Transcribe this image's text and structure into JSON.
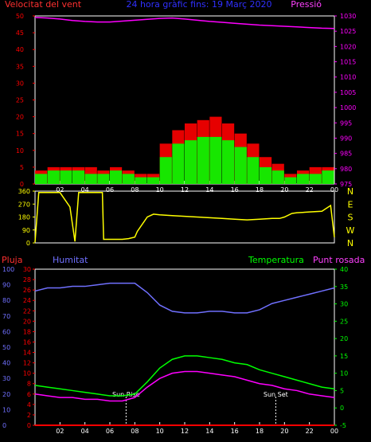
{
  "header": {
    "left_title": "Velocitat del vent",
    "center_title": "24 hora gràfic fins: 19 Març 2020",
    "right_title": "Pressió"
  },
  "colors": {
    "background": "#000000",
    "frame": "#ffffff",
    "wind_avg": "#ff0000",
    "wind_gust": "#00ff00",
    "wind_ref": "#ffffff",
    "pressure": "#ff00ff",
    "direction": "#ffff00",
    "humidity": "#7070ff",
    "temperature": "#00ff00",
    "dewpoint": "#ff00ff",
    "rain": "#ff0000",
    "grid": "#666666"
  },
  "time_ticks": [
    "02",
    "04",
    "06",
    "08",
    "10",
    "12",
    "14",
    "16",
    "18",
    "20",
    "22",
    "00"
  ],
  "chart_data": [
    {
      "type": "line",
      "id": "wind_pressure",
      "title": "24 hora gràfic fins: 19 Març 2020",
      "ylabel_left": "Velocitat del vent",
      "ylabel_right": "Pressió",
      "ylim_left": [
        0,
        50
      ],
      "ylim_right": [
        975,
        1030
      ],
      "yticks_left": [
        "0",
        "5",
        "10",
        "15",
        "20",
        "25",
        "30",
        "35",
        "40",
        "45",
        "50"
      ],
      "yticks_right": [
        "975",
        "980",
        "985",
        "990",
        "995",
        "1000",
        "1005",
        "1010",
        "1015",
        "1020",
        "1025",
        "1030"
      ],
      "x": [
        0,
        1,
        2,
        3,
        4,
        5,
        6,
        7,
        8,
        9,
        10,
        11,
        12,
        13,
        14,
        15,
        16,
        17,
        18,
        19,
        20,
        21,
        22,
        23,
        24
      ],
      "series": [
        {
          "name": "Pressió",
          "values": [
            1029.5,
            1029.3,
            1029.0,
            1028.5,
            1028.2,
            1028.0,
            1028.0,
            1028.3,
            1028.6,
            1028.9,
            1029.2,
            1029.3,
            1029.0,
            1028.6,
            1028.2,
            1027.9,
            1027.6,
            1027.3,
            1027.0,
            1026.8,
            1026.6,
            1026.4,
            1026.2,
            1026.0,
            1025.9
          ]
        },
        {
          "name": "wind_gust",
          "values": [
            4,
            5,
            5,
            5,
            5,
            4,
            5,
            4,
            3,
            3,
            12,
            16,
            18,
            19,
            20,
            18,
            15,
            12,
            8,
            6,
            3,
            4,
            5,
            5,
            7
          ]
        },
        {
          "name": "wind_avg",
          "values": [
            3,
            4,
            4,
            4,
            3,
            3,
            4,
            3,
            2,
            2,
            8,
            12,
            13,
            14,
            14,
            13,
            11,
            8,
            5,
            4,
            2,
            3,
            3,
            4,
            4
          ]
        }
      ]
    },
    {
      "type": "line",
      "id": "wind_direction",
      "ylim": [
        0,
        360
      ],
      "yticks": [
        "0",
        "90",
        "180",
        "270",
        "360"
      ],
      "yticks_right": [
        "N",
        "W",
        "S",
        "E",
        "N"
      ],
      "x": [
        0,
        0.3,
        1.0,
        2.0,
        2.8,
        3.2,
        3.5,
        4.0,
        4.6,
        5.4,
        5.5,
        6.5,
        7.0,
        7.5,
        8.0,
        8.2,
        9.0,
        9.5,
        10.0,
        11.0,
        12.0,
        13.0,
        14.0,
        15.0,
        16.0,
        17.0,
        18.0,
        19.0,
        19.6,
        20.0,
        20.6,
        21.0,
        22.0,
        23.0,
        23.7,
        24.0
      ],
      "series": [
        {
          "name": "direction",
          "values": [
            5,
            350,
            350,
            350,
            250,
            10,
            350,
            350,
            350,
            350,
            25,
            25,
            25,
            30,
            40,
            80,
            180,
            200,
            195,
            190,
            185,
            180,
            175,
            170,
            165,
            160,
            165,
            170,
            170,
            180,
            205,
            210,
            215,
            220,
            260,
            40
          ]
        }
      ]
    },
    {
      "type": "line",
      "id": "rain_humidity_temp",
      "labels": {
        "rain": "Pluja",
        "humidity": "Humitat",
        "temperature": "Temperatura",
        "dewpoint": "Punt rosada"
      },
      "ylim_rain": [
        0,
        30
      ],
      "ylim_humidity": [
        0,
        100
      ],
      "ylim_temperature": [
        -5,
        40
      ],
      "yticks_humidity": [
        "0",
        "10",
        "20",
        "30",
        "40",
        "50",
        "60",
        "70",
        "80",
        "90",
        "100"
      ],
      "yticks_rain": [
        "0",
        "2",
        "4",
        "6",
        "8",
        "10",
        "12",
        "14",
        "16",
        "18",
        "20",
        "22",
        "24",
        "26",
        "28",
        "30"
      ],
      "yticks_temperature": [
        "-5",
        "0",
        "5",
        "10",
        "15",
        "20",
        "25",
        "30",
        "35",
        "40"
      ],
      "annotations": [
        {
          "text": "Sun Rise",
          "x": 7.3
        },
        {
          "text": "Sun Set",
          "x": 19.3
        }
      ],
      "x": [
        0,
        1,
        2,
        3,
        4,
        5,
        6,
        7,
        8,
        9,
        10,
        11,
        12,
        13,
        14,
        15,
        16,
        17,
        18,
        19,
        20,
        21,
        22,
        23,
        24
      ],
      "series": [
        {
          "name": "Humitat",
          "values": [
            86,
            88,
            88,
            89,
            89,
            90,
            91,
            91,
            91,
            85,
            77,
            73,
            72,
            72,
            73,
            73,
            72,
            72,
            74,
            78,
            80,
            82,
            84,
            86,
            88
          ]
        },
        {
          "name": "Temperatura",
          "values": [
            6.5,
            6,
            5.5,
            5,
            4.5,
            4,
            3.5,
            3.5,
            4,
            7.5,
            11.5,
            14,
            15,
            15,
            14.5,
            14,
            13,
            12.5,
            11,
            10,
            9,
            8,
            7,
            6,
            5.5
          ]
        },
        {
          "name": "Punt rosada",
          "values": [
            4,
            3.5,
            3,
            3,
            2.5,
            2.5,
            2,
            2,
            3,
            6,
            8.5,
            10,
            10.5,
            10.5,
            10,
            9.5,
            9,
            8,
            7,
            6.5,
            5.5,
            5,
            4,
            3.5,
            3
          ]
        },
        {
          "name": "Pluja",
          "values": [
            0,
            0,
            0,
            0,
            0,
            0,
            0,
            0,
            0,
            0,
            0,
            0,
            0,
            0,
            0,
            0,
            0,
            0,
            0,
            0,
            0,
            0,
            0,
            0,
            0
          ]
        }
      ]
    }
  ]
}
